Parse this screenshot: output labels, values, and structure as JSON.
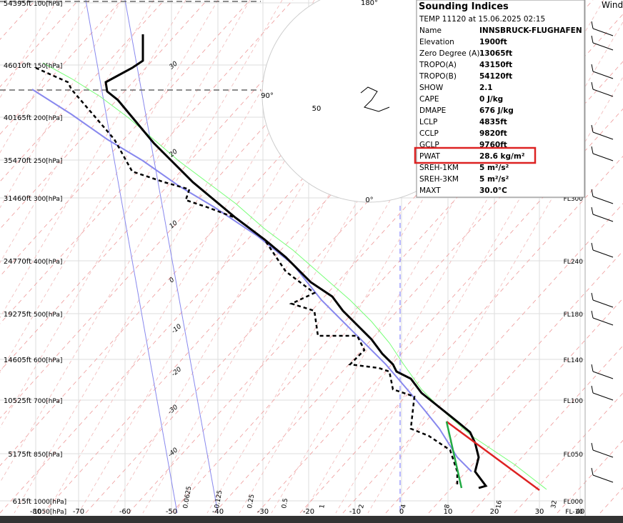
{
  "skewt": {
    "pressure_labels": [
      "100[hPa]",
      "150[hPa]",
      "200[hPa]",
      "250[hPa]",
      "300[hPa]",
      "400[hPa]",
      "500[hPa]",
      "600[hPa]",
      "700[hPa]",
      "850[hPa]",
      "1000[hPa]",
      "1050[hPa]"
    ],
    "altitude_labels": [
      "54395ft",
      "46010ft",
      "40165ft",
      "35470ft",
      "31460ft",
      "24770ft",
      "19275ft",
      "14605ft",
      "10525ft",
      "5175ft",
      "615ft"
    ],
    "temperature_labels": [
      "-80",
      "-70",
      "-60",
      "-50",
      "-40",
      "-30",
      "-20",
      "-10",
      "0",
      "10",
      "20",
      "30",
      "40"
    ],
    "mixing_ratio_labels": [
      "0.0625",
      "0.125",
      "0.25",
      "0.5",
      "1",
      "2",
      "4",
      "8",
      "16",
      "32"
    ],
    "adiabat_labels": [
      "30",
      "20",
      "10",
      "0",
      "-10",
      "-20",
      "-30",
      "-40"
    ],
    "flight_levels": [
      "FL300",
      "FL240",
      "FL180",
      "FL140",
      "FL100",
      "FL050",
      "FL000",
      "FL-10"
    ]
  },
  "hodograph": {
    "labels": [
      "180°",
      "90°",
      "0°",
      "50"
    ]
  },
  "indices": {
    "title": "Sounding Indices",
    "subtitle": "TEMP 11120 at 15.06.2025 02:15",
    "rows": [
      [
        "Name",
        "INNSBRUCK-FLUGHAFEN"
      ],
      [
        "Elevation",
        "1900ft"
      ],
      [
        "Zero Degree (A)",
        "13065ft"
      ],
      [
        "TROPO(A)",
        "43150ft"
      ],
      [
        "TROPO(B)",
        "54120ft"
      ],
      [
        "SHOW",
        "2.1"
      ],
      [
        "CAPE",
        "0 J/kg"
      ],
      [
        "DMAPE",
        "676 J/kg"
      ],
      [
        "LCLP",
        "4835ft"
      ],
      [
        "CCLP",
        "9820ft"
      ],
      [
        "GCLP",
        "9760ft"
      ],
      [
        "PWAT",
        "28.6 kg/m²"
      ],
      [
        "SREH-1KM",
        "5 m²/s²"
      ],
      [
        "SREH-3KM",
        "5 m²/s²"
      ],
      [
        "MAXT",
        "30.0°C"
      ]
    ]
  },
  "wind": {
    "title": "Wind"
  }
}
